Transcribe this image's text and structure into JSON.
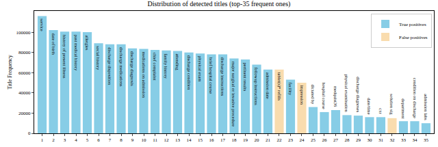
{
  "chart_data": {
    "type": "bar",
    "title": "Distribution of detected titles (top-35 frequent ones)",
    "y_label": "Title Frequency",
    "categories": [
      "1",
      "2",
      "3",
      "4",
      "5",
      "6",
      "7",
      "8",
      "9",
      "10",
      "11",
      "12",
      "13",
      "14",
      "15",
      "16",
      "17",
      "18",
      "19",
      "20",
      "21",
      "22",
      "23",
      "24",
      "25",
      "26",
      "27",
      "28",
      "29",
      "30",
      "31",
      "32",
      "33",
      "34",
      "35"
    ],
    "annotations": [
      "service",
      "date of birth",
      "history of present illness",
      "past medical history",
      "allergies",
      "social history",
      "discharge disposition",
      "discharge medications",
      "discharge diagnosis",
      "medications on admission",
      "chief complaint",
      "family history",
      "attending",
      "discharge condition",
      "physical exam",
      "brief hospital course",
      "discharge instructions",
      "major surgical or invasive procedure",
      "pertinent results",
      "followup instructions",
      "admission date",
      "tablet(s)* refills",
      "facility",
      "impression",
      "dictated by",
      "hospital course",
      "medquist36",
      "physical examination",
      "discharge diagnoses",
      "date/time",
      "cxr",
      "solution sig",
      "department",
      "condition on discharge",
      "admission labs"
    ],
    "series": [
      {
        "name": "True positives",
        "color": "#87cde6",
        "values": [
          116000,
          102000,
          100500,
          100500,
          100000,
          89000,
          88000,
          88000,
          84000,
          83500,
          82500,
          82000,
          81500,
          80000,
          79000,
          78000,
          78000,
          74000,
          73000,
          68000,
          63000,
          null,
          53000,
          null,
          26000,
          21000,
          23000,
          18000,
          17500,
          16000,
          16000,
          null,
          12000,
          12000,
          10000
        ]
      },
      {
        "name": "False positives",
        "color": "#f9dcae",
        "values": [
          null,
          null,
          null,
          null,
          null,
          null,
          null,
          null,
          null,
          null,
          null,
          null,
          null,
          null,
          null,
          null,
          null,
          null,
          null,
          null,
          null,
          63000,
          null,
          50000,
          null,
          null,
          null,
          null,
          null,
          null,
          null,
          15000,
          null,
          null,
          null
        ]
      }
    ],
    "ylim": [
      0,
      121000
    ],
    "yticks": [
      0,
      20000,
      40000,
      60000,
      80000,
      100000
    ],
    "grid": false,
    "legend": "upper right"
  }
}
